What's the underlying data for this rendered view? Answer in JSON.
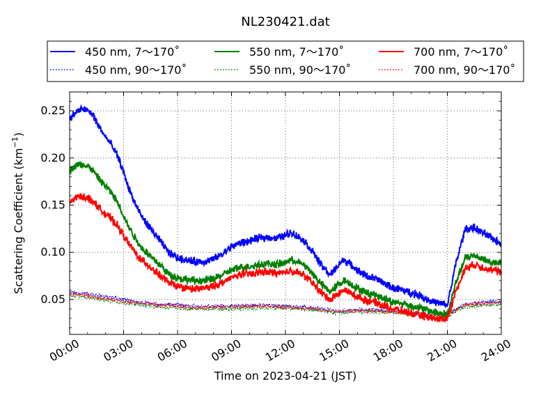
{
  "chart_data": {
    "type": "line",
    "title": "NL230421.dat",
    "xlabel": "Time on 2023-04-21 (JST)",
    "ylabel": "Scattering Coefficient (km",
    "ylabel_unit_superscript": "−1",
    "ylabel_close": ")",
    "x_ticks": [
      "00:00",
      "03:00",
      "06:00",
      "09:00",
      "12:00",
      "15:00",
      "18:00",
      "21:00",
      "24:00"
    ],
    "y_ticks": [
      "0.05",
      "0.10",
      "0.15",
      "0.20",
      "0.25"
    ],
    "xlim_hours": [
      0,
      24
    ],
    "ylim": [
      0.013,
      0.27
    ],
    "grid": true,
    "legend_position": "top",
    "series": [
      {
        "name": "450 nm, 7～170˚",
        "color": "#0000ff",
        "style": "solid",
        "x": [
          0,
          0.25,
          0.5,
          0.75,
          1,
          1.25,
          1.5,
          1.75,
          2,
          2.25,
          2.5,
          2.75,
          3,
          3.25,
          3.5,
          3.75,
          4,
          4.5,
          5,
          5.5,
          6,
          6.5,
          7,
          7.5,
          8,
          8.5,
          9,
          9.5,
          10,
          10.5,
          11,
          11.5,
          12,
          12.25,
          12.5,
          12.75,
          13,
          13.5,
          14,
          14.5,
          15,
          15.25,
          15.5,
          16,
          16.5,
          17,
          17.5,
          18,
          18.5,
          19,
          19.5,
          20,
          20.5,
          21,
          21.5,
          22,
          22.5,
          23,
          23.5,
          24
        ],
        "y": [
          0.24,
          0.247,
          0.25,
          0.252,
          0.25,
          0.247,
          0.238,
          0.23,
          0.222,
          0.216,
          0.208,
          0.198,
          0.185,
          0.17,
          0.158,
          0.147,
          0.138,
          0.125,
          0.113,
          0.1,
          0.094,
          0.092,
          0.09,
          0.09,
          0.093,
          0.098,
          0.106,
          0.11,
          0.112,
          0.115,
          0.116,
          0.115,
          0.118,
          0.121,
          0.119,
          0.116,
          0.113,
          0.101,
          0.086,
          0.076,
          0.088,
          0.092,
          0.089,
          0.081,
          0.075,
          0.072,
          0.067,
          0.062,
          0.06,
          0.057,
          0.054,
          0.049,
          0.046,
          0.044,
          0.09,
          0.125,
          0.126,
          0.12,
          0.115,
          0.109
        ]
      },
      {
        "name": "450 nm, 90～170˚",
        "color": "#0000ff",
        "style": "dotted",
        "x": [
          0,
          1,
          2,
          3,
          4,
          5,
          6,
          7,
          8,
          9,
          10,
          11,
          12,
          13,
          14,
          15,
          16,
          17,
          18,
          19,
          20,
          21,
          22,
          23,
          24
        ],
        "y": [
          0.058,
          0.056,
          0.053,
          0.05,
          0.047,
          0.045,
          0.044,
          0.043,
          0.043,
          0.043,
          0.044,
          0.044,
          0.043,
          0.042,
          0.04,
          0.038,
          0.039,
          0.039,
          0.038,
          0.036,
          0.034,
          0.035,
          0.045,
          0.047,
          0.048
        ]
      },
      {
        "name": "550 nm, 7～170˚",
        "color": "#008000",
        "style": "solid",
        "x": [
          0,
          0.25,
          0.5,
          0.75,
          1,
          1.25,
          1.5,
          1.75,
          2,
          2.25,
          2.5,
          2.75,
          3,
          3.25,
          3.5,
          3.75,
          4,
          4.5,
          5,
          5.5,
          6,
          6.5,
          7,
          7.5,
          8,
          8.5,
          9,
          9.5,
          10,
          10.5,
          11,
          11.5,
          12,
          12.25,
          12.5,
          12.75,
          13,
          13.5,
          14,
          14.5,
          15,
          15.25,
          15.5,
          16,
          16.5,
          17,
          17.5,
          18,
          18.5,
          19,
          19.5,
          20,
          20.5,
          21,
          21.5,
          22,
          22.5,
          23,
          23.5,
          24
        ],
        "y": [
          0.186,
          0.191,
          0.193,
          0.193,
          0.191,
          0.188,
          0.181,
          0.175,
          0.17,
          0.165,
          0.158,
          0.15,
          0.139,
          0.128,
          0.12,
          0.112,
          0.105,
          0.096,
          0.087,
          0.077,
          0.073,
          0.071,
          0.07,
          0.07,
          0.072,
          0.076,
          0.081,
          0.084,
          0.085,
          0.087,
          0.088,
          0.087,
          0.089,
          0.092,
          0.091,
          0.089,
          0.087,
          0.078,
          0.066,
          0.058,
          0.067,
          0.07,
          0.068,
          0.062,
          0.057,
          0.055,
          0.051,
          0.047,
          0.046,
          0.043,
          0.041,
          0.038,
          0.036,
          0.034,
          0.069,
          0.094,
          0.097,
          0.093,
          0.089,
          0.088
        ]
      },
      {
        "name": "550 nm, 90～170˚",
        "color": "#008000",
        "style": "dotted",
        "x": [
          0,
          1,
          2,
          3,
          4,
          5,
          6,
          7,
          8,
          9,
          10,
          11,
          12,
          13,
          14,
          15,
          16,
          17,
          18,
          19,
          20,
          21,
          22,
          23,
          24
        ],
        "y": [
          0.054,
          0.052,
          0.049,
          0.046,
          0.044,
          0.042,
          0.041,
          0.04,
          0.04,
          0.04,
          0.041,
          0.041,
          0.041,
          0.04,
          0.038,
          0.036,
          0.037,
          0.037,
          0.036,
          0.034,
          0.032,
          0.033,
          0.042,
          0.044,
          0.045
        ]
      },
      {
        "name": "700 nm, 7～170˚",
        "color": "#ff0000",
        "style": "solid",
        "x": [
          0,
          0.25,
          0.5,
          0.75,
          1,
          1.25,
          1.5,
          1.75,
          2,
          2.25,
          2.5,
          2.75,
          3,
          3.25,
          3.5,
          3.75,
          4,
          4.5,
          5,
          5.5,
          6,
          6.5,
          7,
          7.5,
          8,
          8.5,
          9,
          9.5,
          10,
          10.5,
          11,
          11.5,
          12,
          12.25,
          12.5,
          12.75,
          13,
          13.5,
          14,
          14.5,
          15,
          15.25,
          15.5,
          16,
          16.5,
          17,
          17.5,
          18,
          18.5,
          19,
          19.5,
          20,
          20.5,
          21,
          21.5,
          22,
          22.5,
          23,
          23.5,
          24
        ],
        "y": [
          0.152,
          0.157,
          0.159,
          0.159,
          0.158,
          0.155,
          0.15,
          0.145,
          0.14,
          0.137,
          0.132,
          0.126,
          0.118,
          0.11,
          0.104,
          0.097,
          0.092,
          0.084,
          0.076,
          0.068,
          0.064,
          0.062,
          0.061,
          0.062,
          0.064,
          0.068,
          0.073,
          0.077,
          0.077,
          0.079,
          0.079,
          0.078,
          0.078,
          0.081,
          0.08,
          0.078,
          0.076,
          0.068,
          0.057,
          0.05,
          0.057,
          0.06,
          0.058,
          0.053,
          0.049,
          0.047,
          0.043,
          0.04,
          0.038,
          0.035,
          0.033,
          0.031,
          0.029,
          0.03,
          0.06,
          0.083,
          0.087,
          0.084,
          0.081,
          0.079
        ]
      },
      {
        "name": "700 nm, 90～170˚",
        "color": "#ff0000",
        "style": "dotted",
        "x": [
          0,
          1,
          2,
          3,
          4,
          5,
          6,
          7,
          8,
          9,
          10,
          11,
          12,
          13,
          14,
          15,
          16,
          17,
          18,
          19,
          20,
          21,
          22,
          23,
          24
        ],
        "y": [
          0.056,
          0.054,
          0.051,
          0.048,
          0.046,
          0.044,
          0.043,
          0.042,
          0.042,
          0.042,
          0.043,
          0.043,
          0.042,
          0.041,
          0.039,
          0.037,
          0.038,
          0.038,
          0.037,
          0.035,
          0.033,
          0.034,
          0.044,
          0.046,
          0.047
        ]
      }
    ]
  }
}
